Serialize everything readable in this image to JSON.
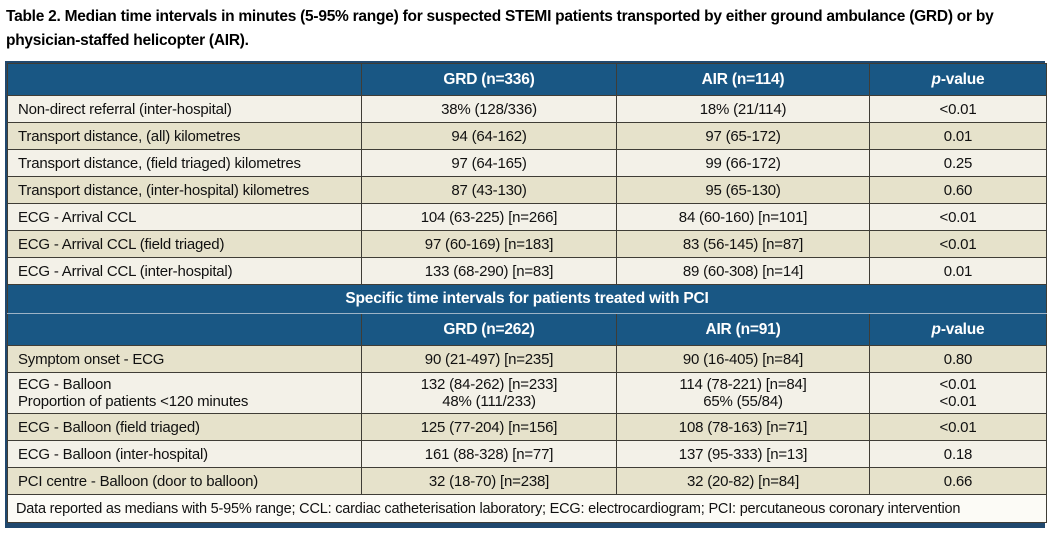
{
  "caption": "Table 2. Median time intervals in minutes (5-95% range) for suspected STEMI patients transported by either ground ambulance (GRD) or by physician-staffed helicopter (AIR).",
  "footnote": "Data reported as medians with 5-95% range; CCL: cardiac catheterisation laboratory; ECG: electrocardiogram; PCI: percutaneous coronary intervention",
  "colors": {
    "header_blue": "#195784",
    "row_light": "#f3f1e8",
    "row_dark": "#e6e2cb",
    "inner_border": "#3f3d36",
    "outer_border": "#20486e",
    "header_text": "#ffffff"
  },
  "sections": [
    {
      "header": [
        "",
        "GRD (n=336)",
        "AIR (n=114)",
        {
          "i": "p",
          "t": "-value"
        }
      ],
      "rows": [
        [
          "Non-direct referral (inter-hospital)",
          "38% (128/336)",
          "18% (21/114)",
          "<0.01"
        ],
        [
          "Transport distance, (all) kilometres",
          "94 (64-162)",
          "97 (65-172)",
          "0.01"
        ],
        [
          "Transport distance, (field triaged) kilometres",
          "97 (64-165)",
          "99 (66-172)",
          "0.25"
        ],
        [
          "Transport distance, (inter-hospital) kilometres",
          "87 (43-130)",
          "95 (65-130)",
          "0.60"
        ],
        [
          "ECG - Arrival CCL",
          "104 (63-225) [n=266]",
          "84 (60-160) [n=101]",
          "<0.01"
        ],
        [
          "ECG - Arrival CCL (field triaged)",
          "97 (60-169) [n=183]",
          "83 (56-145) [n=87]",
          "<0.01"
        ],
        [
          "ECG - Arrival CCL (inter-hospital)",
          "133 (68-290) [n=83]",
          "89 (60-308) [n=14]",
          "0.01"
        ]
      ]
    },
    {
      "section_title": "Specific time intervals for patients treated with PCI",
      "header": [
        "",
        "GRD (n=262)",
        "AIR (n=91)",
        {
          "i": "p",
          "t": "-value"
        }
      ],
      "rows": [
        [
          "Symptom onset - ECG",
          "90 (21-497) [n=235]",
          "90 (16-405) [n=84]",
          "0.80"
        ],
        [
          [
            "ECG - Balloon",
            "Proportion of patients <120 minutes"
          ],
          [
            "132 (84-262) [n=233]",
            "48% (111/233)"
          ],
          [
            "114 (78-221) [n=84]",
            "65% (55/84)"
          ],
          [
            "<0.01",
            "<0.01"
          ]
        ],
        [
          "ECG - Balloon (field triaged)",
          "125 (77-204) [n=156]",
          "108 (78-163) [n=71]",
          "<0.01"
        ],
        [
          "ECG - Balloon (inter-hospital)",
          "161 (88-328) [n=77]",
          "137 (95-333) [n=13]",
          "0.18"
        ],
        [
          "PCI centre - Balloon (door to balloon)",
          "32 (18-70) [n=238]",
          "32 (20-82) [n=84]",
          "0.66"
        ]
      ]
    }
  ]
}
